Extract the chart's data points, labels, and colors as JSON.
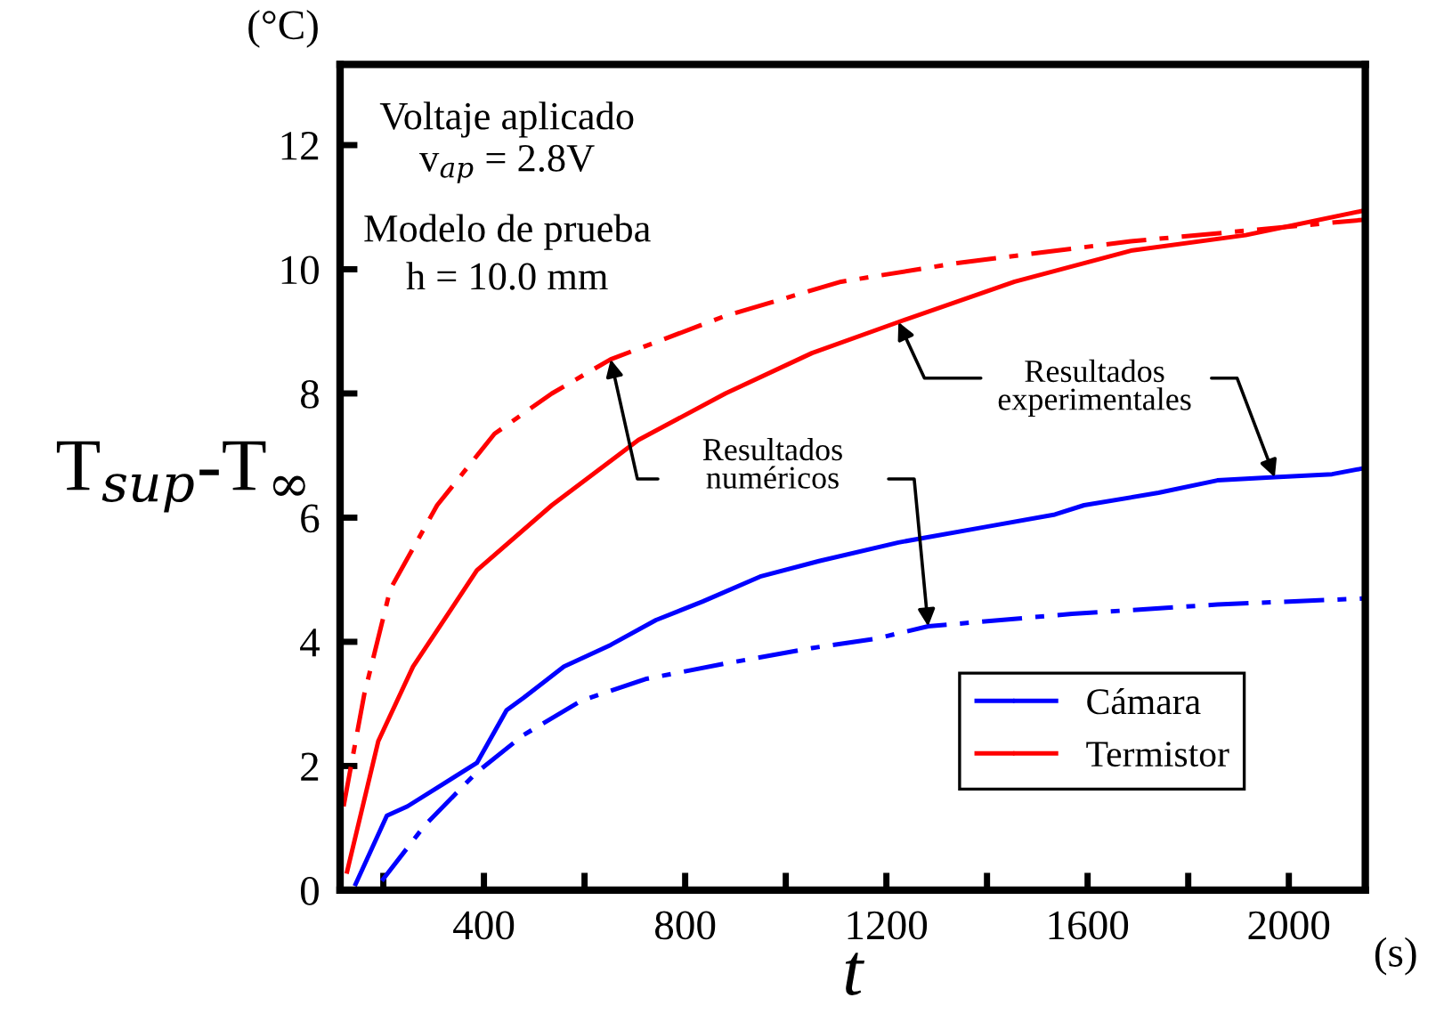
{
  "chart_data": {
    "type": "line",
    "xlabel": "t",
    "ylabel": "T$_{sup}$-T$_{∞}$",
    "annotations": [
      "Voltaje aplicado",
      "v$_{ap}$ = 2.8V",
      "Modelo de prueba",
      "h = 10.0 mm",
      "Resultados\nnuméricos",
      {
        "text": "Resultados\nexperimentales",
        "x": 1224,
        "y": 9.15
      },
      "(°C)",
      "(s)"
    ],
    "series": [
      {
        "name": "Cámara",
        "color": "#0000ff",
        "line_style": "solid",
        "x": [
          145,
          207,
          248,
          317,
          386,
          445,
          479,
          559,
          652,
          742,
          835,
          949,
          1066,
          1224,
          1397,
          1535,
          1593,
          1741,
          1858,
          1972,
          2086,
          2152
        ],
        "values": [
          0.1,
          1.2,
          1.35,
          1.7,
          2.05,
          2.9,
          3.1,
          3.6,
          3.95,
          4.35,
          4.65,
          5.05,
          5.3,
          5.6,
          5.85,
          6.05,
          6.2,
          6.4,
          6.6,
          6.65,
          6.7,
          6.8
        ]
      },
      {
        "color": "#0000ff",
        "line_style": "dashdot",
        "x": [
          197,
          283,
          386,
          479,
          593,
          721,
          880,
          1052,
          1179,
          1283,
          1569,
          1858,
          2152
        ],
        "values": [
          0.15,
          1.05,
          1.9,
          2.5,
          3.05,
          3.4,
          3.65,
          3.9,
          4.05,
          4.25,
          4.45,
          4.6,
          4.7
        ]
      },
      {
        "name": "Termistor",
        "color": "#ff0000",
        "line_style": "solid",
        "x": [
          128,
          190,
          259,
          386,
          535,
          707,
          880,
          1052,
          1224,
          1455,
          1686,
          1914,
          2152
        ],
        "values": [
          0.3,
          2.4,
          3.6,
          5.15,
          6.2,
          7.25,
          8.0,
          8.65,
          9.15,
          9.8,
          10.3,
          10.55,
          10.95
        ]
      },
      {
        "color": "#ff0000",
        "line_style": "dashdot",
        "x": [
          121,
          162,
          214,
          307,
          421,
          535,
          652,
          880,
          1110,
          1341,
          1686,
          2152
        ],
        "values": [
          1.35,
          3.15,
          4.85,
          6.2,
          7.35,
          8.0,
          8.55,
          9.25,
          9.8,
          10.1,
          10.45,
          10.8
        ]
      }
    ],
    "xlim": [
      114,
      2152
    ],
    "ylim": [
      0,
      13.3
    ],
    "xticks": [
      {
        "value": 200,
        "label": null
      },
      400,
      {
        "value": 600,
        "label": null
      },
      800,
      {
        "value": 1000,
        "label": null
      },
      1200,
      {
        "value": 1400,
        "label": null
      },
      1600,
      {
        "value": 1800,
        "label": null
      },
      2000
    ],
    "yticks": [
      0,
      2,
      4,
      6,
      8,
      10,
      12
    ],
    "grid": false,
    "legend": "bottom right",
    "marker": "none"
  }
}
